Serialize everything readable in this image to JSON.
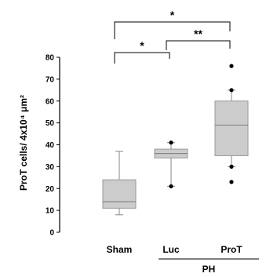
{
  "chart_data": {
    "type": "box",
    "ylabel": "ProT cells/ 4x10⁴ μm²",
    "ylim": [
      0,
      80
    ],
    "yticks": [
      0,
      10,
      20,
      30,
      40,
      50,
      60,
      70,
      80
    ],
    "group_label": "PH",
    "group_members": [
      "Luc",
      "ProT"
    ],
    "categories": [
      "Sham",
      "Luc",
      "ProT"
    ],
    "boxes": [
      {
        "category": "Sham",
        "whisker_low": 8,
        "q1": 11,
        "median": 14,
        "q3": 24,
        "whisker_high": 37,
        "outliers": []
      },
      {
        "category": "Luc",
        "whisker_low": 21,
        "q1": 34,
        "median": 36,
        "q3": 38,
        "whisker_high": 41,
        "outliers": [
          21,
          41
        ]
      },
      {
        "category": "ProT",
        "whisker_low": 30,
        "q1": 35,
        "median": 49,
        "q3": 60,
        "whisker_high": 65,
        "outliers": [
          23,
          30,
          65,
          76
        ]
      }
    ],
    "significance": [
      {
        "from": "Sham",
        "to": "Luc",
        "label": "*"
      },
      {
        "from": "Luc",
        "to": "ProT",
        "label": "**"
      },
      {
        "from": "Sham",
        "to": "ProT",
        "label": "*"
      }
    ],
    "colors": {
      "box_fill": "#cccccc",
      "line": "#000000",
      "whisker": "#999999"
    }
  }
}
